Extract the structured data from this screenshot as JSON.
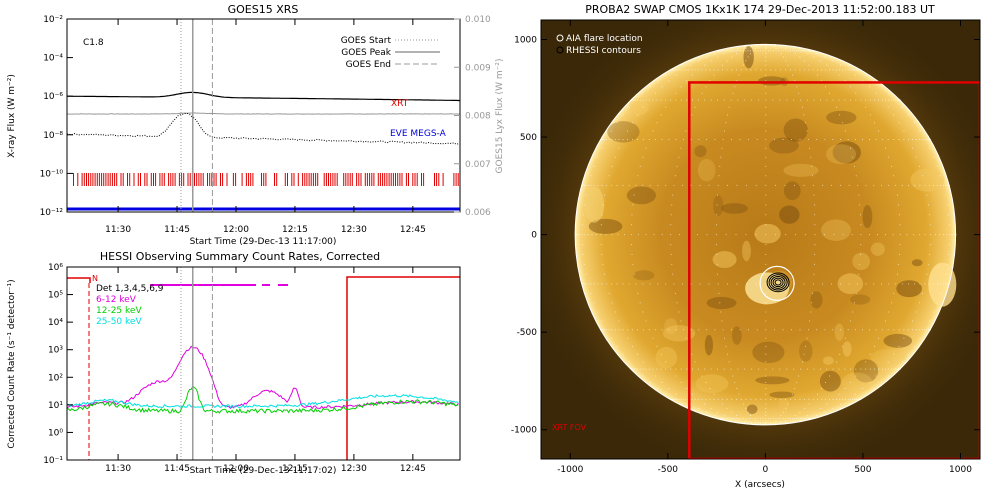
{
  "chart_data": [
    {
      "type": "line",
      "title": "GOES15 XRS",
      "xlabel": "Start Time (29-Dec-13 11:17:00)",
      "ylabel": "X-ray Flux (W m⁻²)",
      "y2label": "GOES15 Lyx Flux (W m⁻²)",
      "annotation": "C1.8",
      "x_ticks": [
        "11:30",
        "11:45",
        "12:00",
        "12:15",
        "12:30",
        "12:45"
      ],
      "y_ticks": [
        "10⁻²",
        "10⁻⁴",
        "10⁻⁶",
        "10⁻⁸",
        "10⁻¹⁰",
        "10⁻¹²"
      ],
      "y2_ticks": [
        "0.010",
        "0.009",
        "0.008",
        "0.007",
        "0.006"
      ],
      "y_scale": "log",
      "ylim": [
        1e-12,
        0.01
      ],
      "y2lim": [
        0.006,
        0.01
      ],
      "legend": [
        "GOES Start",
        "GOES Peak",
        "GOES End"
      ],
      "legend_position": "top-right",
      "markers": {
        "start": "11:46",
        "peak": "11:49",
        "end": "11:54"
      },
      "labels": {
        "xrt": "XRT",
        "eve": "EVE MEGS-A"
      },
      "colors": {
        "xrt": "#e00000",
        "eve": "#0000e0",
        "axis2": "#999999"
      }
    },
    {
      "type": "line",
      "title": "HESSI Observing Summary Count Rates, Corrected",
      "xlabel": "Start Time (29-Dec-13 11:17:02)",
      "ylabel": "Corrected Count Rate (s⁻¹ detector⁻¹)",
      "x_ticks": [
        "11:30",
        "11:45",
        "12:00",
        "12:15",
        "12:30",
        "12:45"
      ],
      "y_ticks": [
        "10⁶",
        "10⁵",
        "10⁴",
        "10³",
        "10²",
        "10¹",
        "10⁰",
        "10⁻¹"
      ],
      "y_scale": "log",
      "ylim": [
        0.1,
        1000000.0
      ],
      "night_label": "N",
      "series": [
        {
          "name": "Det 1,3,4,5,6,9",
          "color": "#000000"
        },
        {
          "name": "6-12 keV",
          "color": "#e000e0"
        },
        {
          "name": "12-25 keV",
          "color": "#00d000"
        },
        {
          "name": "25-50 keV",
          "color": "#00e0e0"
        }
      ]
    },
    {
      "type": "image",
      "title": "PROBA2 SWAP CMOS 1Kx1K 174 29-Dec-2013 11:52:00.183 UT",
      "xlabel": "X (arcsecs)",
      "x_ticks": [
        "-1000",
        "-500",
        "0",
        "500",
        "1000"
      ],
      "y_ticks": [
        "1000",
        "500",
        "0",
        "-500",
        "-1000"
      ],
      "xlim": [
        -1150,
        1100
      ],
      "ylim": [
        -1150,
        1100
      ],
      "legend": [
        "AIA flare location",
        "RHESSI contours"
      ],
      "legend_position": "top-left",
      "fov_label": "XRT FOV",
      "fov_box": {
        "x0": -390,
        "x1": 1100,
        "y0": -1150,
        "y1": 780
      },
      "flare_location": {
        "x": 60,
        "y": -250
      },
      "colors": {
        "fov": "#e00000",
        "sun": "#d99a20"
      }
    }
  ]
}
